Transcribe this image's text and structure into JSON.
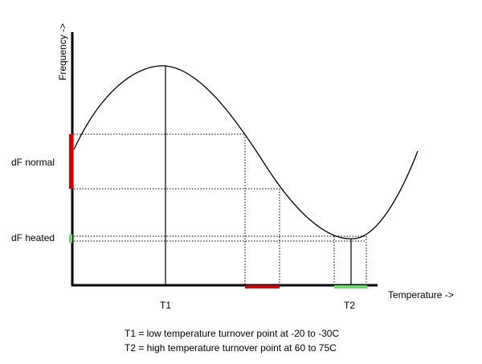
{
  "axes": {
    "x_label": "Temperature ->",
    "y_label": "Frequency ->"
  },
  "markers": {
    "t1_label": "T1",
    "t2_label": "T2",
    "df_normal_label": "dF normal",
    "df_heated_label": "dF heated"
  },
  "notes": [
    "T1 = low temperature turnover point at -20 to -30C",
    "T2 = high temperature turnover point at 60 to 75C"
  ],
  "colors": {
    "normal_range": "#d40000",
    "heated_range": "#66dd66",
    "line": "#000000"
  }
}
